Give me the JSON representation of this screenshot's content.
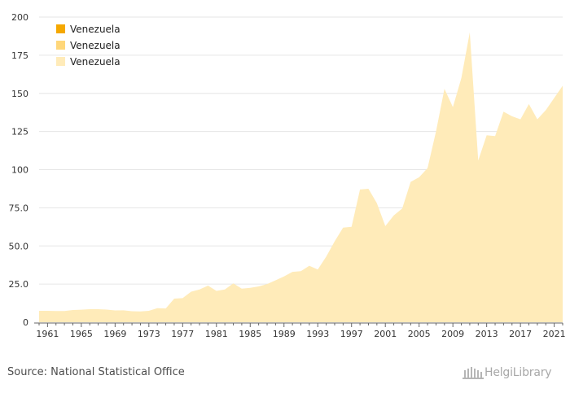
{
  "colors": {
    "series1": "#F5A800",
    "series2": "#FFD77A",
    "series3": "#FFEBB9",
    "grid": "#e6e6e6",
    "axis": "#555555",
    "text": "#333333"
  },
  "footer": {
    "source": "Source: National Statistical Office",
    "brand": "HelgiLibrary"
  },
  "chart_data": {
    "type": "area",
    "legend_position": "top-left",
    "grid": "horizontal",
    "xlim": [
      1960,
      2022
    ],
    "ylim": [
      0,
      200
    ],
    "y_ticks": [
      "0",
      "25.0",
      "50.0",
      "75.0",
      "100",
      "125",
      "150",
      "175",
      "200"
    ],
    "x_ticks": [
      "1961",
      "1965",
      "1969",
      "1973",
      "1977",
      "1981",
      "1985",
      "1989",
      "1993",
      "1997",
      "2001",
      "2005",
      "2009",
      "2013",
      "2017",
      "2021"
    ],
    "legend": [
      "Venezuela",
      "Venezuela",
      "Venezuela"
    ],
    "series": [
      {
        "name": "Venezuela",
        "x": [
          1960,
          1961,
          1962,
          1963,
          1964,
          1965,
          1966,
          1967,
          1968,
          1969,
          1970,
          1971,
          1972,
          1973,
          1974,
          1975,
          1976,
          1977,
          1978,
          1979,
          1980,
          1981,
          1982,
          1983,
          1984,
          1985,
          1986,
          1987,
          1988,
          1989,
          1990,
          1991,
          1992,
          1993,
          1994,
          1995,
          1996,
          1997,
          1998,
          1999,
          2000,
          2001,
          2002,
          2003,
          2004,
          2005,
          2006,
          2007,
          2008,
          2009,
          2010,
          2011,
          2012,
          2013,
          2014,
          2015,
          2016,
          2017,
          2018,
          2019,
          2020,
          2021,
          2022
        ],
        "values": [
          7.5,
          7.5,
          7.3,
          7.3,
          8.0,
          8.2,
          8.5,
          8.5,
          8.3,
          7.7,
          7.8,
          7.2,
          7.1,
          7.5,
          9.2,
          9.0,
          15.5,
          15.8,
          20.0,
          21.5,
          24.0,
          20.5,
          21.5,
          25.5,
          22.0,
          22.5,
          23.5,
          25.0,
          27.5,
          30.0,
          33.0,
          33.5,
          37.0,
          34.5,
          43.0,
          53.0,
          62.0,
          62.5,
          87.0,
          87.5,
          78.0,
          63.0,
          70.0,
          74.5,
          92.0,
          95.0,
          101.0,
          125.0,
          153.0,
          141.0,
          160.0,
          190.0,
          106.0,
          122.5,
          122.0,
          138.0,
          135.0,
          133.0,
          143.0,
          133.0,
          139.0,
          147.0,
          155.0
        ]
      }
    ]
  }
}
